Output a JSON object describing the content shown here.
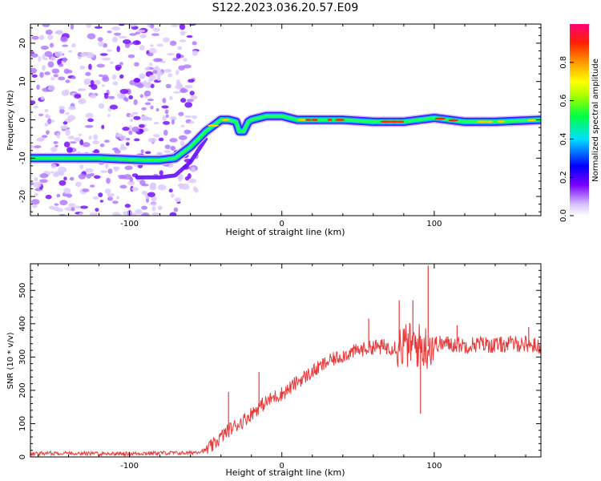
{
  "figure": {
    "title": "S122.2023.036.20.57.E09"
  },
  "chart_data": [
    {
      "type": "heatmap",
      "xlabel": "Height of straight line (km)",
      "ylabel": "Frequency (Hz)",
      "xlim": [
        -165,
        170
      ],
      "ylim": [
        -25,
        25
      ],
      "x_ticks": [
        -100,
        0,
        100
      ],
      "y_ticks": [
        -20,
        -10,
        0,
        10,
        20
      ],
      "noise_region_x": [
        -165,
        -60
      ],
      "ridge_line": {
        "x": [
          -165,
          -120,
          -90,
          -80,
          -70,
          -60,
          -50,
          -45,
          -40,
          -35,
          -30,
          -28,
          -25,
          -22,
          -20,
          -15,
          -10,
          -5,
          0,
          10,
          20,
          40,
          60,
          80,
          100,
          120,
          140,
          170
        ],
        "y": [
          -10,
          -10,
          -10.5,
          -10.5,
          -10,
          -7,
          -3,
          -1.5,
          0,
          0,
          -0.5,
          -3,
          -3,
          -0.5,
          0,
          0.5,
          1,
          1,
          1,
          0,
          0,
          0,
          -0.5,
          -0.5,
          0.5,
          -0.5,
          -0.5,
          0
        ]
      },
      "secondary_ridge": {
        "x": [
          -95,
          -80,
          -70,
          -60,
          -55,
          -50
        ],
        "y": [
          -15,
          -15,
          -14.5,
          -11,
          -8,
          -5
        ]
      },
      "colorbar": {
        "label": "Normalized spectral amplitude",
        "range": [
          0,
          1
        ],
        "ticks": [
          0.0,
          0.2,
          0.4,
          0.6,
          0.8
        ]
      }
    },
    {
      "type": "line",
      "xlabel": "Height of straight line (km)",
      "ylabel": "SNR (10 * v/v)",
      "xlim": [
        -165,
        170
      ],
      "ylim": [
        0,
        580
      ],
      "x_ticks": [
        -100,
        0,
        100
      ],
      "y_ticks": [
        0,
        100,
        200,
        300,
        400,
        500
      ],
      "color": "#e83a3a",
      "series": [
        {
          "x": [
            -165,
            -140,
            -120,
            -100,
            -80,
            -60,
            -50,
            -45,
            -40,
            -35,
            -30,
            -25,
            -20,
            -15,
            -10,
            -5,
            0,
            5,
            10,
            15,
            20,
            25,
            30,
            40,
            50,
            60,
            70,
            80,
            90,
            95,
            100,
            110,
            120,
            130,
            140,
            150,
            160,
            170
          ],
          "y": [
            10,
            12,
            10,
            10,
            12,
            12,
            20,
            35,
            60,
            80,
            95,
            110,
            130,
            150,
            165,
            180,
            190,
            205,
            225,
            240,
            255,
            270,
            285,
            305,
            320,
            330,
            330,
            335,
            335,
            330,
            340,
            340,
            335,
            340,
            335,
            340,
            340,
            330
          ]
        }
      ],
      "spikes": [
        {
          "x": -35,
          "y": 195
        },
        {
          "x": -15,
          "y": 255
        },
        {
          "x": 57,
          "y": 415
        },
        {
          "x": 77,
          "y": 470
        },
        {
          "x": 86,
          "y": 470
        },
        {
          "x": 91,
          "y": 130
        },
        {
          "x": 96,
          "y": 575
        },
        {
          "x": 115,
          "y": 395
        },
        {
          "x": 162,
          "y": 390
        }
      ]
    }
  ]
}
